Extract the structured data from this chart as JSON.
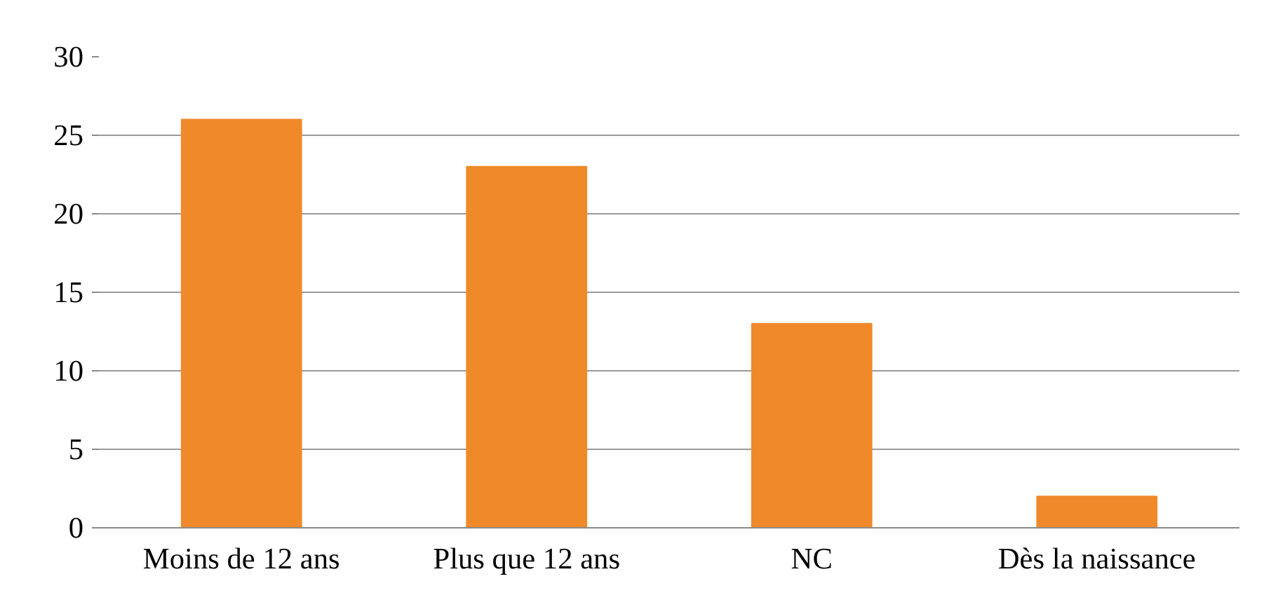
{
  "chart_data": {
    "type": "bar",
    "categories": [
      "Moins de 12 ans",
      "Plus que 12 ans",
      "NC",
      "Dès la naissance"
    ],
    "values": [
      26,
      23,
      13,
      2
    ],
    "color": "#f0892a",
    "ylim": [
      0,
      30
    ],
    "yticks": [
      0,
      5,
      10,
      15,
      20,
      25,
      30
    ],
    "grid": "y"
  }
}
